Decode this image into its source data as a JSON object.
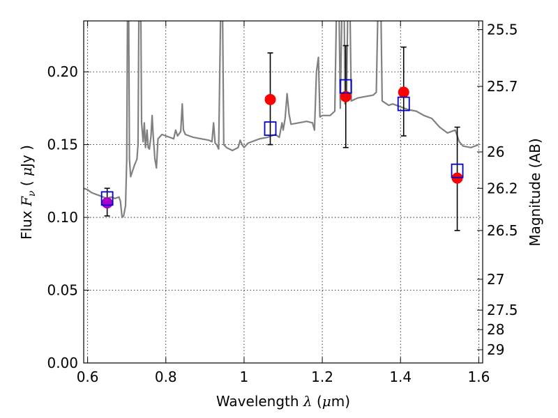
{
  "chart_data": {
    "type": "scatter",
    "xlabel": "Wavelength  λ (μm)",
    "ylabel": "Flux  Fν  ( μJy )",
    "y2label": "Magnitude (AB)",
    "xlim": [
      0.59,
      1.61
    ],
    "ylim": [
      0.0,
      0.235
    ],
    "grid": true,
    "x_ticks": [
      {
        "value": 0.6,
        "label": "0.6"
      },
      {
        "value": 0.8,
        "label": "0.8"
      },
      {
        "value": 1.0,
        "label": "1"
      },
      {
        "value": 1.2,
        "label": "1.2"
      },
      {
        "value": 1.4,
        "label": "1.4"
      },
      {
        "value": 1.6,
        "label": "1.6"
      }
    ],
    "y_ticks": [
      {
        "value": 0.0,
        "label": "0.00"
      },
      {
        "value": 0.05,
        "label": "0.05"
      },
      {
        "value": 0.1,
        "label": "0.10"
      },
      {
        "value": 0.15,
        "label": "0.15"
      },
      {
        "value": 0.2,
        "label": "0.20"
      }
    ],
    "magnitude_ticks": [
      {
        "label": "25.5",
        "flux": 0.229
      },
      {
        "label": "25.7",
        "flux": 0.19
      },
      {
        "label": "26",
        "flux": 0.145
      },
      {
        "label": "26.2",
        "flux": 0.12
      },
      {
        "label": "26.5",
        "flux": 0.091
      },
      {
        "label": "27",
        "flux": 0.0575
      },
      {
        "label": "27.5",
        "flux": 0.0363
      },
      {
        "label": "28",
        "flux": 0.0229
      },
      {
        "label": "29",
        "flux": 0.0091
      }
    ],
    "model_spectrum": {
      "color": "#808080",
      "points": [
        [
          0.59,
          0.12
        ],
        [
          0.6,
          0.119
        ],
        [
          0.61,
          0.117
        ],
        [
          0.62,
          0.116
        ],
        [
          0.63,
          0.115
        ],
        [
          0.64,
          0.114
        ],
        [
          0.65,
          0.113
        ],
        [
          0.66,
          0.114
        ],
        [
          0.67,
          0.113
        ],
        [
          0.68,
          0.114
        ],
        [
          0.684,
          0.111
        ],
        [
          0.688,
          0.1
        ],
        [
          0.692,
          0.101
        ],
        [
          0.697,
          0.108
        ],
        [
          0.7,
          0.14
        ],
        [
          0.702,
          0.24
        ],
        [
          0.705,
          0.24
        ],
        [
          0.707,
          0.14
        ],
        [
          0.71,
          0.128
        ],
        [
          0.715,
          0.132
        ],
        [
          0.72,
          0.136
        ],
        [
          0.726,
          0.14
        ],
        [
          0.729,
          0.15
        ],
        [
          0.731,
          0.24
        ],
        [
          0.736,
          0.24
        ],
        [
          0.738,
          0.165
        ],
        [
          0.742,
          0.152
        ],
        [
          0.745,
          0.165
        ],
        [
          0.748,
          0.148
        ],
        [
          0.752,
          0.16
        ],
        [
          0.755,
          0.148
        ],
        [
          0.758,
          0.147
        ],
        [
          0.762,
          0.156
        ],
        [
          0.765,
          0.17
        ],
        [
          0.768,
          0.155
        ],
        [
          0.772,
          0.14
        ],
        [
          0.776,
          0.134
        ],
        [
          0.78,
          0.154
        ],
        [
          0.79,
          0.157
        ],
        [
          0.8,
          0.156
        ],
        [
          0.81,
          0.155
        ],
        [
          0.82,
          0.154
        ],
        [
          0.825,
          0.16
        ],
        [
          0.83,
          0.156
        ],
        [
          0.838,
          0.159
        ],
        [
          0.842,
          0.178
        ],
        [
          0.845,
          0.16
        ],
        [
          0.85,
          0.157
        ],
        [
          0.87,
          0.155
        ],
        [
          0.89,
          0.154
        ],
        [
          0.91,
          0.153
        ],
        [
          0.918,
          0.152
        ],
        [
          0.922,
          0.165
        ],
        [
          0.926,
          0.151
        ],
        [
          0.93,
          0.15
        ],
        [
          0.935,
          0.147
        ],
        [
          0.94,
          0.24
        ],
        [
          0.945,
          0.24
        ],
        [
          0.948,
          0.15
        ],
        [
          0.955,
          0.148
        ],
        [
          0.97,
          0.146
        ],
        [
          0.985,
          0.148
        ],
        [
          0.99,
          0.153
        ],
        [
          0.995,
          0.15
        ],
        [
          1.0,
          0.148
        ],
        [
          1.01,
          0.151
        ],
        [
          1.02,
          0.152
        ],
        [
          1.04,
          0.154
        ],
        [
          1.06,
          0.155
        ],
        [
          1.08,
          0.157
        ],
        [
          1.09,
          0.155
        ],
        [
          1.097,
          0.165
        ],
        [
          1.1,
          0.16
        ],
        [
          1.105,
          0.168
        ],
        [
          1.11,
          0.185
        ],
        [
          1.115,
          0.171
        ],
        [
          1.12,
          0.164
        ],
        [
          1.14,
          0.165
        ],
        [
          1.16,
          0.166
        ],
        [
          1.175,
          0.165
        ],
        [
          1.18,
          0.16
        ],
        [
          1.185,
          0.2
        ],
        [
          1.19,
          0.21
        ],
        [
          1.194,
          0.169
        ],
        [
          1.2,
          0.17
        ],
        [
          1.22,
          0.17
        ],
        [
          1.232,
          0.173
        ],
        [
          1.236,
          0.24
        ],
        [
          1.243,
          0.24
        ],
        [
          1.246,
          0.175
        ],
        [
          1.25,
          0.24
        ],
        [
          1.256,
          0.24
        ],
        [
          1.258,
          0.178
        ],
        [
          1.262,
          0.18
        ],
        [
          1.265,
          0.24
        ],
        [
          1.271,
          0.24
        ],
        [
          1.274,
          0.18
        ],
        [
          1.29,
          0.182
        ],
        [
          1.31,
          0.183
        ],
        [
          1.33,
          0.184
        ],
        [
          1.338,
          0.186
        ],
        [
          1.342,
          0.24
        ],
        [
          1.35,
          0.24
        ],
        [
          1.353,
          0.18
        ],
        [
          1.37,
          0.177
        ],
        [
          1.38,
          0.178
        ],
        [
          1.4,
          0.176
        ],
        [
          1.42,
          0.174
        ],
        [
          1.44,
          0.173
        ],
        [
          1.46,
          0.17
        ],
        [
          1.48,
          0.168
        ],
        [
          1.5,
          0.162
        ],
        [
          1.52,
          0.158
        ],
        [
          1.54,
          0.16
        ],
        [
          1.55,
          0.152
        ],
        [
          1.56,
          0.149
        ],
        [
          1.58,
          0.148
        ],
        [
          1.6,
          0.15
        ]
      ]
    },
    "model_photometry": {
      "marker": "open-square",
      "color": "#0000cc",
      "points": [
        {
          "x": 0.65,
          "y": 0.113
        },
        {
          "x": 1.067,
          "y": 0.161
        },
        {
          "x": 1.26,
          "y": 0.19
        },
        {
          "x": 1.408,
          "y": 0.178
        },
        {
          "x": 1.545,
          "y": 0.132
        }
      ]
    },
    "observed_photometry": {
      "marker": "filled-circle",
      "points": [
        {
          "x": 0.65,
          "y": 0.11,
          "yerr_low": 0.101,
          "yerr_high": 0.12,
          "color": "#aa00cc"
        },
        {
          "x": 1.067,
          "y": 0.181,
          "yerr_low": 0.15,
          "yerr_high": 0.213,
          "color": "#ff0000"
        },
        {
          "x": 1.26,
          "y": 0.183,
          "yerr_low": 0.148,
          "yerr_high": 0.218,
          "color": "#ff0000"
        },
        {
          "x": 1.408,
          "y": 0.186,
          "yerr_low": 0.156,
          "yerr_high": 0.217,
          "color": "#ff0000"
        },
        {
          "x": 1.545,
          "y": 0.127,
          "yerr_low": 0.091,
          "yerr_high": 0.162,
          "color": "#ff0000"
        }
      ]
    }
  }
}
